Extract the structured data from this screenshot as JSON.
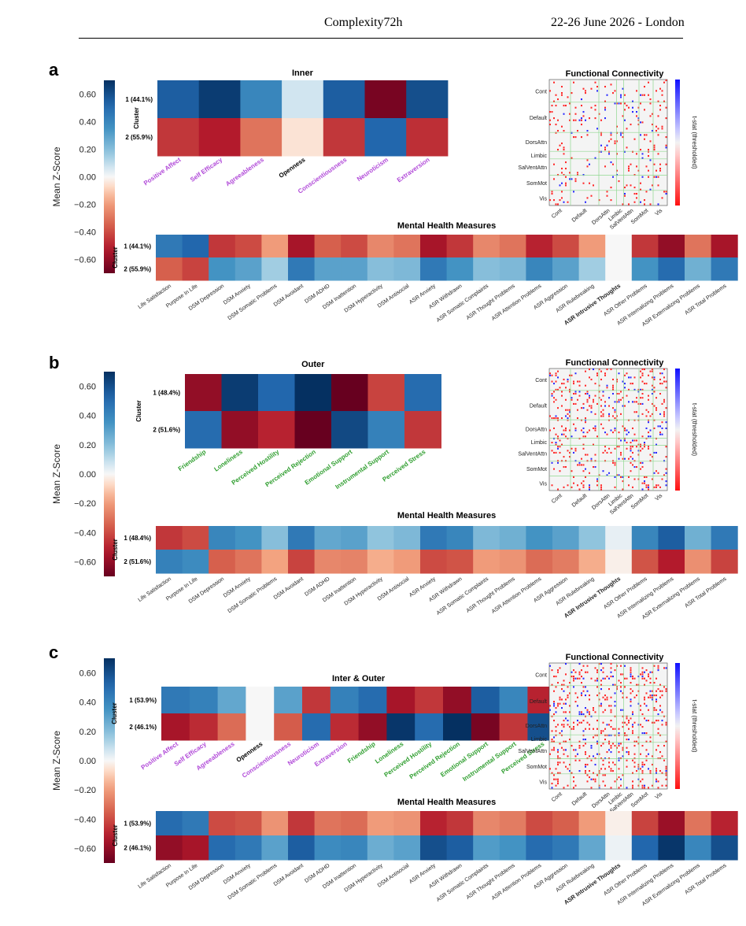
{
  "header": {
    "left": "Complexity72h",
    "right": "22-26 June 2026 - London"
  },
  "colors": {
    "colormap": "RdBu",
    "neg_extreme": "#67001f",
    "pos_extreme": "#053061",
    "self_label_color": "#b048d8",
    "social_label_color": "#2f9e2f",
    "fc_pos": "#ff2a2a",
    "fc_neg": "#2a2aff",
    "fc_grid": "#8fd88f"
  },
  "chart_data": [
    {
      "panel": "a",
      "type": "heatmap",
      "title": "Inner",
      "ylabel": "Cluster",
      "rows": [
        "1 (44.1%)",
        "2 (55.9%)"
      ],
      "columns": [
        "Positive Affect",
        "Self Efficacy",
        "Agreeableness",
        "Openness",
        "Conscientiousness",
        "Neuroticism",
        "Extraversion"
      ],
      "column_groups": [
        "self",
        "self",
        "self",
        "bold",
        "self",
        "self",
        "self"
      ],
      "values": [
        [
          0.55,
          0.66,
          0.4,
          0.07,
          0.55,
          -0.66,
          0.6
        ],
        [
          -0.45,
          -0.52,
          -0.3,
          -0.05,
          -0.45,
          0.52,
          -0.47
        ]
      ],
      "colorbar": {
        "label": "Mean Z-Score",
        "ticks": [
          "0.60",
          "0.40",
          "0.20",
          "0.00",
          "−0.20",
          "−0.40",
          "−0.60"
        ],
        "range": [
          -0.7,
          0.7
        ]
      },
      "fc": {
        "title": "Functional Connectivity",
        "networks": [
          "Cont",
          "Default",
          "DorsAttn",
          "Limbic",
          "SalVentAttn",
          "SomMot",
          "Vis"
        ],
        "colorbar_label": "t-stat (thresholded)",
        "density": 0.08
      },
      "mh": {
        "title": "Mental Health Measures",
        "rows": [
          "1 (44.1%)",
          "2 (55.9%)"
        ],
        "columns": [
          "Life Satisfaction",
          "Purpose In Life",
          "DSM Depression",
          "DSM Anxiety",
          "DSM Somatic Problems",
          "DSM Avoidant",
          "DSM ADHD",
          "DSM Inattention",
          "DSM Hyperactivity",
          "DSM Antisocial",
          "ASR Anxiety",
          "ASR Withdrawn",
          "ASR Somatic Complaints",
          "ASR Thought Problems",
          "ASR Attention Problems",
          "ASR Aggression",
          "ASR Rulebreaking",
          "ASR Intrusive Thoughts",
          "ASR Other Problems",
          "ASR Internalizing Problems",
          "ASR Externalizing Problems",
          "ASR Total Problems"
        ],
        "bold_column": "ASR Intrusive Thoughts",
        "values": [
          [
            0.45,
            0.52,
            -0.45,
            -0.4,
            -0.2,
            -0.55,
            -0.35,
            -0.4,
            -0.25,
            -0.3,
            -0.55,
            -0.45,
            -0.25,
            -0.3,
            -0.5,
            -0.4,
            -0.2,
            0.0,
            -0.45,
            -0.6,
            -0.3,
            -0.55
          ],
          [
            -0.35,
            -0.42,
            0.35,
            0.3,
            0.15,
            0.45,
            0.3,
            0.3,
            0.2,
            0.22,
            0.45,
            0.35,
            0.2,
            0.22,
            0.4,
            0.3,
            0.15,
            0.0,
            0.35,
            0.5,
            0.25,
            0.45
          ]
        ]
      }
    },
    {
      "panel": "b",
      "type": "heatmap",
      "title": "Outer",
      "ylabel": "Cluster",
      "rows": [
        "1 (48.4%)",
        "2 (51.6%)"
      ],
      "columns": [
        "Friendship",
        "Loneliness",
        "Perceived Hostility",
        "Perceived Rejection",
        "Emotional Support",
        "Instrumental Support",
        "Perceived Stress"
      ],
      "column_groups": [
        "social",
        "social",
        "social",
        "social",
        "social",
        "social",
        "social"
      ],
      "values": [
        [
          -0.6,
          0.66,
          0.52,
          0.78,
          -0.7,
          -0.42,
          0.5
        ],
        [
          0.5,
          -0.6,
          -0.5,
          -0.7,
          0.62,
          0.42,
          -0.45
        ]
      ],
      "colorbar": {
        "label": "Mean Z-Score",
        "ticks": [
          "0.60",
          "0.40",
          "0.20",
          "0.00",
          "−0.20",
          "−0.40",
          "−0.60"
        ],
        "range": [
          -0.7,
          0.7
        ]
      },
      "fc": {
        "title": "Functional Connectivity",
        "networks": [
          "Cont",
          "Default",
          "DorsAttn",
          "Limbic",
          "SalVentAttn",
          "SomMot",
          "Vis"
        ],
        "colorbar_label": "t-stat (thresholded)",
        "density": 0.13
      },
      "mh": {
        "title": "Mental Health Measures",
        "rows": [
          "1 (48.4%)",
          "2 (51.6%)"
        ],
        "columns": [
          "Life Satisfaction",
          "Purpose In Life",
          "DSM Depression",
          "DSM Anxiety",
          "DSM Somatic Problems",
          "DSM Avoidant",
          "DSM ADHD",
          "DSM Inattention",
          "DSM Hyperactivity",
          "DSM Antisocial",
          "ASR Anxiety",
          "ASR Withdrawn",
          "ASR Somatic Complaints",
          "ASR Thought Problems",
          "ASR Attention Problems",
          "ASR Aggression",
          "ASR Rulebreaking",
          "ASR Intrusive Thoughts",
          "ASR Other Problems",
          "ASR Internalizing Problems",
          "ASR Externalizing Problems",
          "ASR Total Problems"
        ],
        "bold_column": "ASR Intrusive Thoughts",
        "values": [
          [
            -0.45,
            -0.4,
            0.4,
            0.35,
            0.2,
            0.45,
            0.28,
            0.3,
            0.18,
            0.22,
            0.45,
            0.4,
            0.22,
            0.25,
            0.35,
            0.3,
            0.18,
            0.03,
            0.4,
            0.55,
            0.25,
            0.45
          ],
          [
            0.42,
            0.38,
            -0.35,
            -0.3,
            -0.18,
            -0.42,
            -0.25,
            -0.26,
            -0.16,
            -0.2,
            -0.4,
            -0.38,
            -0.2,
            -0.22,
            -0.32,
            -0.28,
            -0.16,
            -0.02,
            -0.38,
            -0.52,
            -0.23,
            -0.42
          ]
        ]
      }
    },
    {
      "panel": "c",
      "type": "heatmap",
      "title": "Inter & Outer",
      "ylabel": "Cluster",
      "rows": [
        "1 (53.9%)",
        "2 (46.1%)"
      ],
      "columns": [
        "Positive Affect",
        "Self Efficacy",
        "Agreeableness",
        "Openness",
        "Conscientiousness",
        "Neuroticism",
        "Extraversion",
        "Friendship",
        "Loneliness",
        "Perceived Hostility",
        "Perceived Rejection",
        "Emotional Support",
        "Instrumental Support",
        "Perceived Stress"
      ],
      "column_groups": [
        "self",
        "self",
        "self",
        "bold",
        "self",
        "self",
        "self",
        "social",
        "social",
        "social",
        "social",
        "social",
        "social",
        "social"
      ],
      "values": [
        [
          0.45,
          0.42,
          0.28,
          0.0,
          0.3,
          -0.45,
          0.42,
          0.5,
          -0.55,
          -0.45,
          -0.6,
          0.55,
          0.4,
          -0.5
        ],
        [
          -0.55,
          -0.48,
          -0.32,
          0.0,
          -0.36,
          0.5,
          -0.48,
          -0.6,
          0.68,
          0.5,
          0.75,
          -0.66,
          -0.45,
          0.6
        ]
      ],
      "colorbar": {
        "label": "Mean Z-Score",
        "ticks": [
          "0.60",
          "0.40",
          "0.20",
          "0.00",
          "−0.20",
          "−0.40",
          "−0.60"
        ],
        "range": [
          -0.7,
          0.7
        ]
      },
      "fc": {
        "title": "Functional Connectivity",
        "networks": [
          "Cont",
          "Default",
          "DorsAttn",
          "Limbic",
          "SalVentAttn",
          "SomMot",
          "Vis"
        ],
        "colorbar_label": "t-stat (thresholded)",
        "density": 0.16
      },
      "mh": {
        "title": "Mental Health Measures",
        "rows": [
          "1 (53.9%)",
          "2 (46.1%)"
        ],
        "columns": [
          "Life Satisfaction",
          "Purpose In Life",
          "DSM Depression",
          "DSM Anxiety",
          "DSM Somatic Problems",
          "DSM Avoidant",
          "DSM ADHD",
          "DSM Inattention",
          "DSM Hyperactivity",
          "DSM Antisocial",
          "ASR Anxiety",
          "ASR Withdrawn",
          "ASR Somatic Complaints",
          "ASR Thought Problems",
          "ASR Attention Problems",
          "ASR Aggression",
          "ASR Rulebreaking",
          "ASR Intrusive Thoughts",
          "ASR Other Problems",
          "ASR Internalizing Problems",
          "ASR Externalizing Problems",
          "ASR Total Problems"
        ],
        "bold_column": "ASR Intrusive Thoughts",
        "values": [
          [
            0.5,
            0.45,
            -0.4,
            -0.38,
            -0.22,
            -0.45,
            -0.3,
            -0.32,
            -0.2,
            -0.22,
            -0.5,
            -0.45,
            -0.25,
            -0.28,
            -0.4,
            -0.35,
            -0.2,
            -0.02,
            -0.42,
            -0.58,
            -0.3,
            -0.5
          ],
          [
            -0.6,
            -0.55,
            0.5,
            0.45,
            0.3,
            0.55,
            0.38,
            0.4,
            0.26,
            0.3,
            0.6,
            0.55,
            0.32,
            0.35,
            0.5,
            0.45,
            0.28,
            0.02,
            0.52,
            0.68,
            0.4,
            0.6
          ]
        ]
      }
    }
  ]
}
